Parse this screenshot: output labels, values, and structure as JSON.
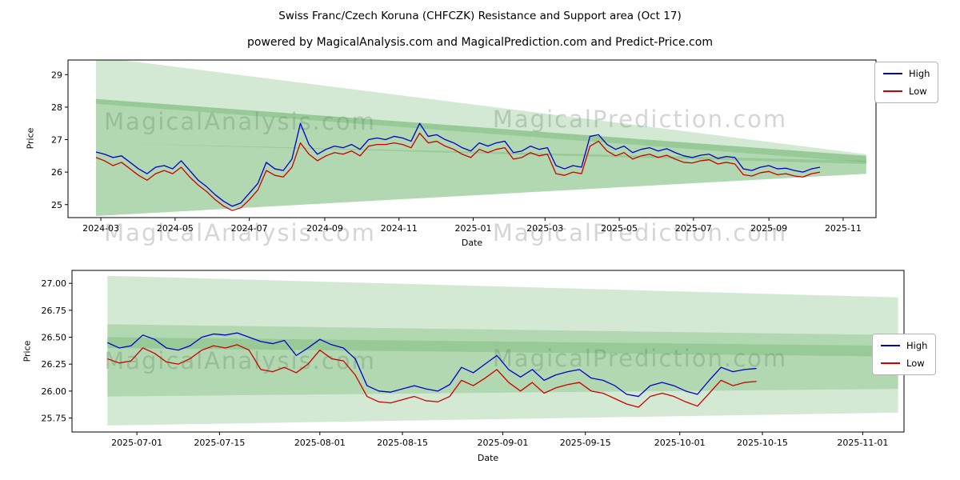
{
  "figure": {
    "title": "Swiss Franc/Czech Koruna (CHFCZK) Resistance and Support area (Oct 17)",
    "subtitle": "powered by MagicalAnalysis.com and MagicalPrediction.com and Predict-Price.com",
    "background": "#ffffff"
  },
  "watermarks": {
    "analysis": "MagicalAnalysis.com",
    "prediction": "MagicalPrediction.com"
  },
  "chart_data": [
    {
      "type": "line",
      "ylabel": "Price",
      "xlabel": "Date",
      "ylim": [
        24.6,
        29.45
      ],
      "xdomain": [
        "2024-02-03",
        "2025-11-28"
      ],
      "grid": false,
      "legend_position": "upper right",
      "band_color": "#3c9b3c",
      "band_alpha": 0.22,
      "yticks": [
        {
          "v": 25,
          "label": "25"
        },
        {
          "v": 26,
          "label": "26"
        },
        {
          "v": 27,
          "label": "27"
        },
        {
          "v": 28,
          "label": "28"
        },
        {
          "v": 29,
          "label": "29"
        }
      ],
      "xticks": [
        {
          "date": "2024-03-01",
          "label": "2024-03"
        },
        {
          "date": "2024-05-01",
          "label": "2024-05"
        },
        {
          "date": "2024-07-01",
          "label": "2024-07"
        },
        {
          "date": "2024-09-01",
          "label": "2024-09"
        },
        {
          "date": "2024-11-01",
          "label": "2024-11"
        },
        {
          "date": "2025-01-01",
          "label": "2025-01"
        },
        {
          "date": "2025-03-01",
          "label": "2025-03"
        },
        {
          "date": "2025-05-01",
          "label": "2025-05"
        },
        {
          "date": "2025-07-01",
          "label": "2025-07"
        },
        {
          "date": "2025-09-01",
          "label": "2025-09"
        },
        {
          "date": "2025-11-01",
          "label": "2025-11"
        }
      ],
      "bands": [
        {
          "x0": "2024-02-26",
          "x1": "2025-11-20",
          "top0": 29.55,
          "bot0": 28.1,
          "top1": 26.55,
          "bot1": 26.3
        },
        {
          "x0": "2024-02-26",
          "x1": "2025-11-20",
          "top0": 28.25,
          "bot0": 26.9,
          "top1": 26.5,
          "bot1": 26.25
        },
        {
          "x0": "2024-02-26",
          "x1": "2025-11-20",
          "top0": 26.9,
          "bot0": 24.65,
          "top1": 26.35,
          "bot1": 25.95
        },
        {
          "x0": "2024-02-26",
          "x1": "2025-11-20",
          "top0": 28.25,
          "bot0": 24.65,
          "top1": 26.5,
          "bot1": 25.95
        }
      ],
      "dates": [
        "2024-02-26",
        "2024-03-04",
        "2024-03-11",
        "2024-03-18",
        "2024-03-25",
        "2024-04-01",
        "2024-04-08",
        "2024-04-15",
        "2024-04-22",
        "2024-04-29",
        "2024-05-06",
        "2024-05-13",
        "2024-05-20",
        "2024-05-27",
        "2024-06-03",
        "2024-06-10",
        "2024-06-17",
        "2024-06-24",
        "2024-07-01",
        "2024-07-08",
        "2024-07-15",
        "2024-07-22",
        "2024-07-29",
        "2024-08-05",
        "2024-08-12",
        "2024-08-19",
        "2024-08-26",
        "2024-09-02",
        "2024-09-09",
        "2024-09-16",
        "2024-09-23",
        "2024-09-30",
        "2024-10-07",
        "2024-10-14",
        "2024-10-21",
        "2024-10-28",
        "2024-11-04",
        "2024-11-11",
        "2024-11-18",
        "2024-11-25",
        "2024-12-02",
        "2024-12-09",
        "2024-12-16",
        "2024-12-23",
        "2024-12-30",
        "2025-01-06",
        "2025-01-13",
        "2025-01-20",
        "2025-01-27",
        "2025-02-03",
        "2025-02-10",
        "2025-02-17",
        "2025-02-24",
        "2025-03-03",
        "2025-03-10",
        "2025-03-17",
        "2025-03-24",
        "2025-03-31",
        "2025-04-07",
        "2025-04-14",
        "2025-04-21",
        "2025-04-28",
        "2025-05-05",
        "2025-05-12",
        "2025-05-19",
        "2025-05-26",
        "2025-06-02",
        "2025-06-09",
        "2025-06-16",
        "2025-06-23",
        "2025-06-30",
        "2025-07-07",
        "2025-07-14",
        "2025-07-21",
        "2025-07-28",
        "2025-08-04",
        "2025-08-11",
        "2025-08-18",
        "2025-08-25",
        "2025-09-01",
        "2025-09-08",
        "2025-09-15",
        "2025-09-22",
        "2025-09-29",
        "2025-10-06",
        "2025-10-13"
      ],
      "series": [
        {
          "name": "High",
          "color": "#0000cc",
          "values": [
            26.62,
            26.55,
            26.45,
            26.5,
            26.3,
            26.1,
            25.95,
            26.15,
            26.2,
            26.1,
            26.35,
            26.05,
            25.75,
            25.55,
            25.3,
            25.1,
            24.95,
            25.05,
            25.35,
            25.65,
            26.3,
            26.1,
            26.05,
            26.4,
            27.5,
            26.85,
            26.55,
            26.7,
            26.8,
            26.75,
            26.85,
            26.7,
            27.0,
            27.05,
            27.0,
            27.1,
            27.05,
            26.95,
            27.5,
            27.1,
            27.15,
            27.0,
            26.9,
            26.75,
            26.65,
            26.9,
            26.8,
            26.9,
            26.95,
            26.6,
            26.65,
            26.8,
            26.7,
            26.75,
            26.2,
            26.1,
            26.2,
            26.15,
            27.1,
            27.15,
            26.85,
            26.7,
            26.8,
            26.6,
            26.7,
            26.75,
            26.65,
            26.72,
            26.6,
            26.5,
            26.45,
            26.52,
            26.55,
            26.42,
            26.48,
            26.45,
            26.1,
            26.05,
            26.15,
            26.2,
            26.1,
            26.12,
            26.05,
            26.0,
            26.1,
            26.15
          ]
        },
        {
          "name": "Low",
          "color": "#cc0000",
          "values": [
            26.45,
            26.35,
            26.2,
            26.3,
            26.1,
            25.9,
            25.75,
            25.95,
            26.05,
            25.95,
            26.15,
            25.85,
            25.6,
            25.4,
            25.15,
            24.95,
            24.82,
            24.9,
            25.15,
            25.45,
            26.05,
            25.9,
            25.85,
            26.15,
            26.9,
            26.55,
            26.35,
            26.5,
            26.6,
            26.55,
            26.65,
            26.5,
            26.8,
            26.85,
            26.85,
            26.9,
            26.85,
            26.75,
            27.2,
            26.9,
            26.95,
            26.8,
            26.7,
            26.55,
            26.45,
            26.7,
            26.6,
            26.7,
            26.75,
            26.4,
            26.45,
            26.6,
            26.5,
            26.55,
            25.95,
            25.9,
            26.0,
            25.95,
            26.8,
            26.95,
            26.65,
            26.5,
            26.6,
            26.4,
            26.5,
            26.55,
            26.45,
            26.52,
            26.4,
            26.3,
            26.28,
            26.35,
            26.38,
            26.25,
            26.3,
            26.25,
            25.92,
            25.88,
            25.98,
            26.02,
            25.92,
            25.95,
            25.88,
            25.85,
            25.95,
            26.0
          ]
        }
      ]
    },
    {
      "type": "line",
      "ylabel": "Price",
      "xlabel": "Date",
      "ylim": [
        25.62,
        27.12
      ],
      "xdomain": [
        "2025-06-20",
        "2025-11-08"
      ],
      "grid": false,
      "legend_position": "center right",
      "band_color": "#3c9b3c",
      "band_alpha": 0.22,
      "yticks": [
        {
          "v": 25.75,
          "label": "25.75"
        },
        {
          "v": 26.0,
          "label": "26.00"
        },
        {
          "v": 26.25,
          "label": "26.25"
        },
        {
          "v": 26.5,
          "label": "26.50"
        },
        {
          "v": 26.75,
          "label": "26.75"
        },
        {
          "v": 27.0,
          "label": "27.00"
        }
      ],
      "xticks": [
        {
          "date": "2025-07-01",
          "label": "2025-07-01"
        },
        {
          "date": "2025-07-15",
          "label": "2025-07-15"
        },
        {
          "date": "2025-08-01",
          "label": "2025-08-01"
        },
        {
          "date": "2025-08-15",
          "label": "2025-08-15"
        },
        {
          "date": "2025-09-01",
          "label": "2025-09-01"
        },
        {
          "date": "2025-09-15",
          "label": "2025-09-15"
        },
        {
          "date": "2025-10-01",
          "label": "2025-10-01"
        },
        {
          "date": "2025-10-15",
          "label": "2025-10-15"
        },
        {
          "date": "2025-11-01",
          "label": "2025-11-01"
        }
      ],
      "bands": [
        {
          "x0": "2025-06-26",
          "x1": "2025-11-07",
          "top0": 27.07,
          "bot0": 26.62,
          "top1": 26.87,
          "bot1": 26.5
        },
        {
          "x0": "2025-06-26",
          "x1": "2025-11-07",
          "top0": 26.62,
          "bot0": 25.68,
          "top1": 26.5,
          "bot1": 25.8
        },
        {
          "x0": "2025-06-26",
          "x1": "2025-11-07",
          "top0": 26.5,
          "bot0": 25.95,
          "top1": 26.42,
          "bot1": 26.02
        },
        {
          "x0": "2025-06-26",
          "x1": "2025-11-07",
          "top0": 26.62,
          "bot0": 26.4,
          "top1": 26.52,
          "bot1": 26.32
        }
      ],
      "dates": [
        "2025-06-26",
        "2025-06-28",
        "2025-06-30",
        "2025-07-02",
        "2025-07-04",
        "2025-07-06",
        "2025-07-08",
        "2025-07-10",
        "2025-07-12",
        "2025-07-14",
        "2025-07-16",
        "2025-07-18",
        "2025-07-20",
        "2025-07-22",
        "2025-07-24",
        "2025-07-26",
        "2025-07-28",
        "2025-07-30",
        "2025-08-01",
        "2025-08-03",
        "2025-08-05",
        "2025-08-07",
        "2025-08-09",
        "2025-08-11",
        "2025-08-13",
        "2025-08-15",
        "2025-08-17",
        "2025-08-19",
        "2025-08-21",
        "2025-08-23",
        "2025-08-25",
        "2025-08-27",
        "2025-08-29",
        "2025-08-31",
        "2025-09-02",
        "2025-09-04",
        "2025-09-06",
        "2025-09-08",
        "2025-09-10",
        "2025-09-12",
        "2025-09-14",
        "2025-09-16",
        "2025-09-18",
        "2025-09-20",
        "2025-09-22",
        "2025-09-24",
        "2025-09-26",
        "2025-09-28",
        "2025-09-30",
        "2025-10-02",
        "2025-10-04",
        "2025-10-06",
        "2025-10-08",
        "2025-10-10",
        "2025-10-12",
        "2025-10-14"
      ],
      "series": [
        {
          "name": "High",
          "color": "#0000cc",
          "values": [
            26.45,
            26.4,
            26.42,
            26.52,
            26.48,
            26.4,
            26.38,
            26.42,
            26.5,
            26.53,
            26.52,
            26.54,
            26.5,
            26.46,
            26.44,
            26.47,
            26.33,
            26.4,
            26.48,
            26.43,
            26.4,
            26.3,
            26.05,
            26.0,
            25.99,
            26.02,
            26.05,
            26.02,
            26.0,
            26.06,
            26.22,
            26.17,
            26.25,
            26.33,
            26.2,
            26.13,
            26.2,
            26.1,
            26.15,
            26.18,
            26.2,
            26.12,
            26.1,
            26.05,
            25.97,
            25.95,
            26.05,
            26.08,
            26.05,
            26.0,
            25.97,
            26.1,
            26.22,
            26.18,
            26.2,
            26.21
          ]
        },
        {
          "name": "Low",
          "color": "#cc0000",
          "values": [
            26.3,
            26.26,
            26.28,
            26.4,
            26.35,
            26.27,
            26.25,
            26.3,
            26.38,
            26.42,
            26.4,
            26.43,
            26.38,
            26.2,
            26.18,
            26.22,
            26.17,
            26.25,
            26.38,
            26.3,
            26.28,
            26.15,
            25.95,
            25.9,
            25.89,
            25.92,
            25.95,
            25.91,
            25.9,
            25.95,
            26.1,
            26.05,
            26.12,
            26.2,
            26.08,
            26.0,
            26.08,
            25.98,
            26.03,
            26.06,
            26.08,
            26.0,
            25.98,
            25.93,
            25.88,
            25.85,
            25.95,
            25.98,
            25.95,
            25.9,
            25.86,
            25.98,
            26.1,
            26.05,
            26.08,
            26.09
          ]
        }
      ]
    }
  ]
}
